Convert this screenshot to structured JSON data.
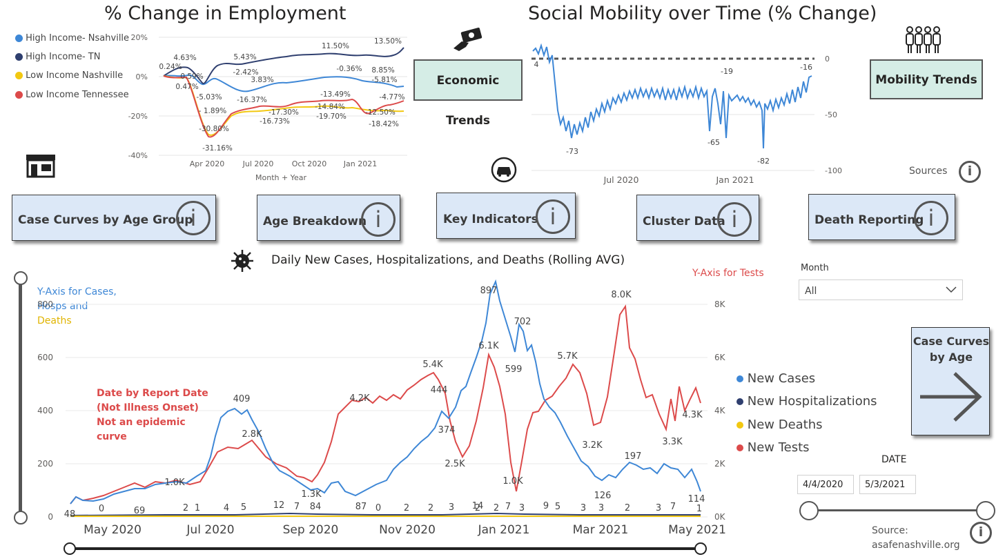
{
  "employment": {
    "title": "% Change in Employment",
    "legend": [
      {
        "name": "High Income- Nsahville",
        "color": "#3e87d6"
      },
      {
        "name": "High Income- TN",
        "color": "#2f3f6f"
      },
      {
        "name": "Low Income Nashville",
        "color": "#f2c811"
      },
      {
        "name": "Low Income Tennessee",
        "color": "#dc4a4a"
      }
    ],
    "y_ticks": [
      "20%",
      "0%",
      "-20%",
      "-40%"
    ],
    "x_ticks": [
      "Apr 2020",
      "Jul 2020",
      "Oct 2020",
      "Jan 2021"
    ],
    "xlabel": "Month + Year",
    "labels": [
      "0.24%",
      "4.63%",
      "0.59%",
      "0.47%",
      "-5.03%",
      "- 1.89%",
      "-30.80%",
      "-31.16%",
      "5.43%",
      "-2.42%",
      "3.83%",
      "-16.37%",
      "-17.30%",
      "-16.73%",
      "11.50%",
      "-13.49%",
      "-14.84%",
      "-19.70%",
      "-0.36%",
      "13.50%",
      "8.85%",
      "-5.81%",
      "-4.77%",
      "-12.50%",
      "-18.42%"
    ]
  },
  "mobility": {
    "title": "Social Mobility over Time (% Change)",
    "y_ticks": [
      "0",
      "-50",
      "-100"
    ],
    "x_ticks": [
      "Jul 2020",
      "Jan 2021"
    ],
    "labels": [
      "4",
      "-73",
      "-19",
      "-16",
      "-65",
      "-82"
    ],
    "sources_label": "Sources"
  },
  "buttons": {
    "economic": "Economic Trends",
    "mobility": "Mobility Trends",
    "case_curves": "Case Curves by Age Group",
    "age_breakdown": "Age Breakdown",
    "key_indicators": "Key Indicators",
    "cluster_data": "Cluster Data",
    "death_reporting": "Death Reporting",
    "case_curves_by_age": "Case Curves by Age",
    "info_glyph": "i"
  },
  "daily": {
    "title": "Daily New Cases, Hospitalizations, and Deaths (Rolling AVG)",
    "y_left_title_1": "Y-Axis for Cases,",
    "y_left_title_2": "Hosps and",
    "y_left_title_3": "Deaths",
    "y_right_title": "Y-Axis for Tests",
    "y_left_ticks": [
      "800",
      "600",
      "400",
      "200",
      "0"
    ],
    "y_right_ticks": [
      "8K",
      "6K",
      "4K",
      "2K",
      "0K"
    ],
    "x_ticks": [
      "May 2020",
      "Jul 2020",
      "Sep 2020",
      "Nov 2020",
      "Jan 2021",
      "Mar 2021",
      "May 2021"
    ],
    "note": [
      "Date by Report Date",
      "(Not Illness Onset)",
      "Not an epidemic",
      "curve"
    ],
    "legend": [
      {
        "name": "New Cases",
        "color": "#3e87d6"
      },
      {
        "name": "New Hospitalizations",
        "color": "#2f3f6f"
      },
      {
        "name": "New Deaths",
        "color": "#f2c811"
      },
      {
        "name": "New Tests",
        "color": "#dc4a4a"
      }
    ],
    "case_labels": [
      "48",
      "0",
      "69",
      "409",
      "1.0K",
      "2",
      "1",
      "4",
      "5",
      "12",
      "7",
      "84",
      "87",
      "0",
      "2",
      "2",
      "3",
      "2",
      "14",
      "2",
      "7",
      "3",
      "9",
      "5",
      "3",
      "3",
      "2",
      "3",
      "7",
      "1",
      "897",
      "702",
      "599",
      "444",
      "374",
      "126",
      "197",
      "114",
      "1"
    ],
    "test_labels": [
      "2.8K",
      "4.2K",
      "1.3K",
      "5.4K",
      "6.1K",
      "2.5K",
      "1.0K",
      "5.7K",
      "3.2K",
      "8.0K",
      "3.3K",
      "4.3K"
    ]
  },
  "filters": {
    "month_label": "Month",
    "month_value": "All",
    "date_label": "DATE",
    "date_start": "4/4/2020",
    "date_end": "5/3/2021"
  },
  "source": {
    "line1": "Source:",
    "line2": "asafenashville.org"
  }
}
